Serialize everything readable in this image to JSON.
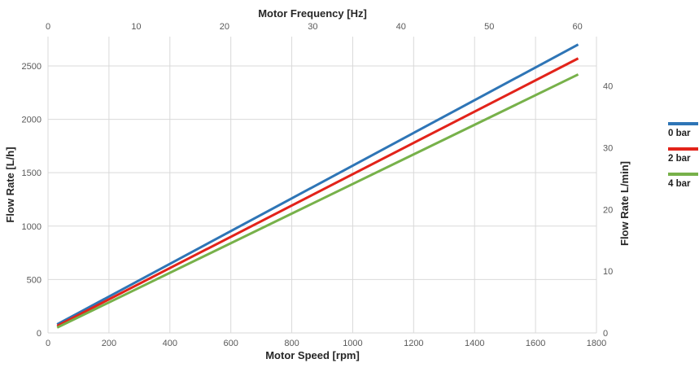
{
  "chart_data": {
    "type": "line",
    "title": "",
    "grid": true,
    "legend_position": "right",
    "colors": {
      "background": "#ffffff",
      "grid": "#d9d9d9",
      "tick_text": "#595959",
      "title_text": "#262626"
    },
    "axes": {
      "top": {
        "label": "Motor Frequency [Hz]",
        "unit": "Hz",
        "range": [
          0,
          62.15
        ],
        "ticks": [
          0,
          10,
          20,
          30,
          40,
          50,
          60
        ]
      },
      "bottom": {
        "label": "Motor Speed [rpm]",
        "unit": "rpm",
        "range": [
          0,
          1800
        ],
        "ticks": [
          0,
          200,
          400,
          600,
          800,
          1000,
          1200,
          1400,
          1600,
          1800
        ]
      },
      "left": {
        "label": "Flow Rate [L/h]",
        "unit": "L/h",
        "range": [
          0,
          2774
        ],
        "ticks": [
          0,
          500,
          1000,
          1500,
          2000,
          2500
        ]
      },
      "right": {
        "label": "Flow Rate L/min]",
        "unit": "L/min",
        "range": [
          0,
          48
        ],
        "ticks": [
          0,
          10,
          20,
          30,
          40
        ]
      }
    },
    "series": [
      {
        "name": "0 bar",
        "color": "#2e75b6",
        "x_rpm": [
          30,
          1740
        ],
        "y_lh": [
          80,
          2700
        ]
      },
      {
        "name": "2 bar",
        "color": "#e2231a",
        "x_rpm": [
          30,
          1740
        ],
        "y_lh": [
          65,
          2570
        ]
      },
      {
        "name": "4 bar",
        "color": "#77b14a",
        "x_rpm": [
          30,
          1740
        ],
        "y_lh": [
          50,
          2420
        ]
      }
    ],
    "line_width": 3
  }
}
